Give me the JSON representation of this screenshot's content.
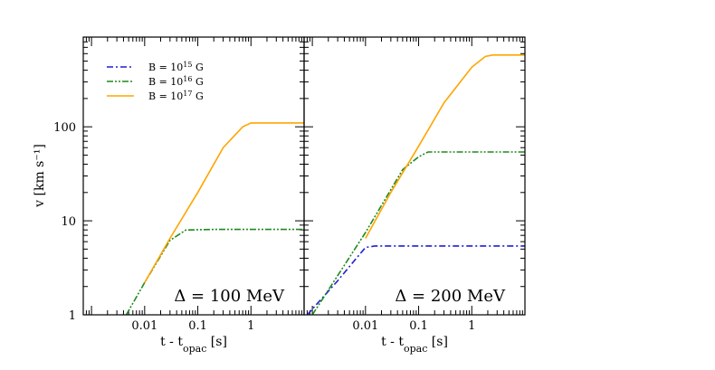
{
  "chart_data": {
    "type": "line",
    "xscale": "log",
    "yscale": "log",
    "ylabel": "v [km s⁻¹]",
    "ylim": [
      1,
      900
    ],
    "yticks": [
      {
        "value": 1,
        "label": "1"
      },
      {
        "value": 10,
        "label": "10"
      },
      {
        "value": 100,
        "label": "100"
      }
    ],
    "legend": {
      "placement": "top-left",
      "entries": [
        {
          "label": "B = 10",
          "exp": "15",
          "unit": "G",
          "color": "#1f1fd6",
          "style": "dash-dot"
        },
        {
          "label": "B = 10",
          "exp": "16",
          "unit": "G",
          "color": "#1e8a1e",
          "style": "dash-dot-dot"
        },
        {
          "label": "B = 10",
          "exp": "17",
          "unit": "G",
          "color": "#ffa500",
          "style": "solid"
        }
      ]
    },
    "panels": [
      {
        "annotation": "Δ = 100 MeV",
        "xlabel_main": "t - t",
        "xlabel_sub": "opac",
        "xlabel_unit": " [s]",
        "xlim": [
          0.0007,
          10
        ],
        "xticks": [
          {
            "value": 0.01,
            "label": "0.01"
          },
          {
            "value": 0.1,
            "label": "0.1"
          },
          {
            "value": 1,
            "label": "1"
          }
        ],
        "series": [
          {
            "name": "B = 10^16 G",
            "color": "#1e8a1e",
            "style": "dash-dot-dot",
            "x": [
              0.0045,
              0.01,
              0.03,
              0.06,
              0.2,
              1,
              10
            ],
            "y": [
              1,
              2.2,
              6.2,
              8.0,
              8.1,
              8.1,
              8.1
            ]
          },
          {
            "name": "B = 10^17 G",
            "color": "#ffa500",
            "style": "solid",
            "x": [
              0.01,
              0.03,
              0.1,
              0.3,
              0.7,
              1.0,
              1.3,
              10
            ],
            "y": [
              2.2,
              6.5,
              20,
              60,
              100,
              110,
              110,
              110
            ]
          }
        ]
      },
      {
        "annotation": "Δ = 200 MeV",
        "xlabel_main": "t - t",
        "xlabel_sub": "opac",
        "xlabel_unit": " [s]",
        "xlim": [
          0.0007,
          10
        ],
        "xticks": [
          {
            "value": 0.01,
            "label": "0.01"
          },
          {
            "value": 0.1,
            "label": "0.1"
          },
          {
            "value": 1,
            "label": "1"
          }
        ],
        "series": [
          {
            "name": "B = 10^15 G",
            "color": "#1f1fd6",
            "style": "dash-dot",
            "x": [
              0.0008,
              0.003,
              0.006,
              0.01,
              0.015,
              0.1,
              1,
              10
            ],
            "y": [
              1,
              2.3,
              3.7,
              5.2,
              5.4,
              5.4,
              5.4,
              5.4
            ]
          },
          {
            "name": "B = 10^16 G",
            "color": "#1e8a1e",
            "style": "dash-dot-dot",
            "x": [
              0.001,
              0.01,
              0.05,
              0.1,
              0.15,
              0.2,
              1,
              10
            ],
            "y": [
              1.0,
              7.5,
              35,
              48,
              54,
              54,
              54,
              54
            ]
          },
          {
            "name": "B = 10^17 G",
            "color": "#ffa500",
            "style": "solid",
            "x": [
              0.01,
              0.03,
              0.1,
              0.3,
              1,
              1.8,
              2.5,
              10
            ],
            "y": [
              6.5,
              20,
              62,
              180,
              430,
              560,
              580,
              580
            ]
          }
        ]
      }
    ]
  }
}
